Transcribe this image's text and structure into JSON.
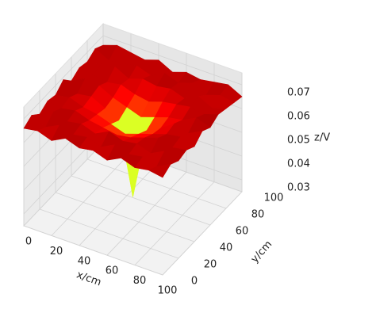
{
  "chart_data": {
    "type": "surface3d",
    "xlabel": "x/cm",
    "ylabel": "y/cm",
    "zlabel": "z/V",
    "x": [
      0,
      10,
      20,
      30,
      40,
      50,
      60,
      70,
      80,
      90,
      100
    ],
    "y": [
      0,
      10,
      20,
      30,
      40,
      50,
      60,
      70,
      80,
      90,
      100
    ],
    "z": [
      [
        0.066,
        0.068,
        0.065,
        0.067,
        0.066,
        0.069,
        0.065,
        0.067,
        0.066,
        0.068,
        0.066
      ],
      [
        0.067,
        0.065,
        0.068,
        0.066,
        0.067,
        0.065,
        0.068,
        0.066,
        0.067,
        0.065,
        0.068
      ],
      [
        0.065,
        0.068,
        0.066,
        0.067,
        0.065,
        0.066,
        0.067,
        0.065,
        0.068,
        0.066,
        0.067
      ],
      [
        0.068,
        0.066,
        0.067,
        0.065,
        0.064,
        0.063,
        0.064,
        0.066,
        0.065,
        0.067,
        0.066
      ],
      [
        0.066,
        0.067,
        0.065,
        0.064,
        0.062,
        0.06,
        0.062,
        0.064,
        0.067,
        0.065,
        0.068
      ],
      [
        0.067,
        0.065,
        0.068,
        0.063,
        0.06,
        0.03,
        0.06,
        0.063,
        0.066,
        0.068,
        0.065
      ],
      [
        0.065,
        0.068,
        0.066,
        0.064,
        0.062,
        0.06,
        0.062,
        0.065,
        0.067,
        0.066,
        0.067
      ],
      [
        0.068,
        0.066,
        0.067,
        0.066,
        0.064,
        0.063,
        0.064,
        0.066,
        0.065,
        0.068,
        0.066
      ],
      [
        0.066,
        0.067,
        0.065,
        0.068,
        0.066,
        0.067,
        0.065,
        0.067,
        0.068,
        0.065,
        0.067
      ],
      [
        0.067,
        0.065,
        0.068,
        0.066,
        0.067,
        0.065,
        0.068,
        0.066,
        0.065,
        0.067,
        0.068
      ],
      [
        0.066,
        0.068,
        0.066,
        0.067,
        0.065,
        0.068,
        0.066,
        0.068,
        0.067,
        0.066,
        0.065
      ]
    ],
    "colormap": "jet",
    "xlim": [
      0,
      100
    ],
    "ylim": [
      0,
      100
    ],
    "zlim": [
      0.025,
      0.075
    ],
    "xticks": [
      0,
      20,
      40,
      60,
      80,
      100
    ],
    "yticks": [
      0,
      20,
      40,
      60,
      80,
      100
    ],
    "zticks": [
      0.03,
      0.04,
      0.05,
      0.06,
      0.07
    ],
    "grid": true
  }
}
